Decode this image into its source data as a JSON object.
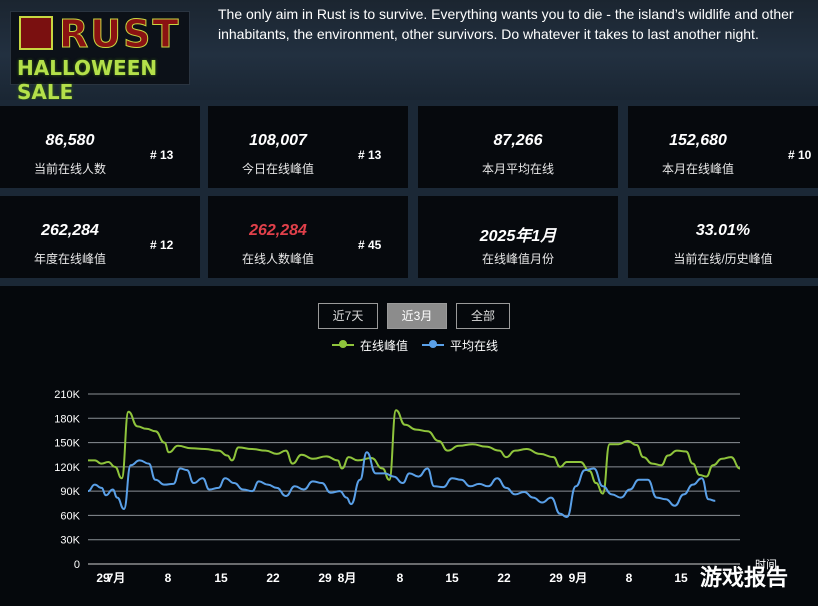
{
  "logo": {
    "title": "RUST",
    "subtitle": "HALLOWEEN SALE"
  },
  "description": "The only aim in Rust is to survive. Everything wants you to die - the island’s wildlife and other inhabitants, the environment, other survivors. Do whatever it takes to last another night.",
  "stats": [
    {
      "value": "86,580",
      "label": "当前在线人数",
      "rank": "# 13"
    },
    {
      "value": "108,007",
      "label": "今日在线峰值",
      "rank": "# 13"
    },
    {
      "value": "87,266",
      "label": "本月平均在线",
      "rank": ""
    },
    {
      "value": "152,680",
      "label": "本月在线峰值",
      "rank": "# 10"
    },
    {
      "value": "262,284",
      "label": "年度在线峰值",
      "rank": "# 12"
    },
    {
      "value": "262,284",
      "label": "在线人数峰值",
      "rank": "# 45",
      "highlight": "#e0404a"
    },
    {
      "value": "2025年1月",
      "label": "在线峰值月份",
      "rank": ""
    },
    {
      "value": "33.01%",
      "label": "当前在线/历史峰值",
      "rank": ""
    }
  ],
  "range_buttons": [
    {
      "label": "近7天",
      "active": false
    },
    {
      "label": "近3月",
      "active": true
    },
    {
      "label": "全部",
      "active": false
    }
  ],
  "chart_data": {
    "type": "line",
    "ylim": [
      0,
      210000
    ],
    "y_ticks": [
      "0",
      "30K",
      "60K",
      "90K",
      "120K",
      "150K",
      "180K",
      "210K"
    ],
    "x_ticks": [
      "29",
      "7月",
      "8",
      "15",
      "22",
      "29",
      "8月",
      "8",
      "15",
      "22",
      "29",
      "9月",
      "8",
      "15"
    ],
    "xlabel": "时间",
    "legend_position": "top",
    "grid": true,
    "series": [
      {
        "name": "在线峰值",
        "color": "#8fc43c",
        "points": [
          [
            0,
            128000
          ],
          [
            3,
            128000
          ],
          [
            6,
            124000
          ],
          [
            9,
            126000
          ],
          [
            12,
            120000
          ],
          [
            15,
            106000
          ],
          [
            18,
            188000
          ],
          [
            22,
            170000
          ],
          [
            26,
            167000
          ],
          [
            30,
            164000
          ],
          [
            34,
            150000
          ],
          [
            36,
            138000
          ],
          [
            40,
            146000
          ],
          [
            46,
            143000
          ],
          [
            52,
            142000
          ],
          [
            58,
            140000
          ],
          [
            62,
            134000
          ],
          [
            64,
            128000
          ],
          [
            67,
            144000
          ],
          [
            73,
            142000
          ],
          [
            79,
            140000
          ],
          [
            84,
            136000
          ],
          [
            88,
            140000
          ],
          [
            91,
            124000
          ],
          [
            95,
            135000
          ],
          [
            100,
            130000
          ],
          [
            106,
            133000
          ],
          [
            111,
            128000
          ],
          [
            113,
            118000
          ],
          [
            116,
            132000
          ],
          [
            120,
            128000
          ],
          [
            126,
            131000
          ],
          [
            131,
            118000
          ],
          [
            134,
            104000
          ],
          [
            137,
            190000
          ],
          [
            141,
            172000
          ],
          [
            146,
            166000
          ],
          [
            151,
            164000
          ],
          [
            156,
            152000
          ],
          [
            160,
            140000
          ],
          [
            165,
            146000
          ],
          [
            171,
            148000
          ],
          [
            177,
            145000
          ],
          [
            183,
            140000
          ],
          [
            186,
            132000
          ],
          [
            190,
            140000
          ],
          [
            195,
            142000
          ],
          [
            201,
            136000
          ],
          [
            207,
            132000
          ],
          [
            210,
            120000
          ],
          [
            213,
            126000
          ],
          [
            219,
            126000
          ],
          [
            223,
            115000
          ],
          [
            226,
            100000
          ],
          [
            229,
            87000
          ],
          [
            232,
            148000
          ],
          [
            236,
            148000
          ],
          [
            240,
            152000
          ],
          [
            244,
            147000
          ],
          [
            247,
            132000
          ],
          [
            251,
            124000
          ],
          [
            255,
            122000
          ],
          [
            258,
            134000
          ],
          [
            262,
            140000
          ],
          [
            266,
            139000
          ],
          [
            269,
            124000
          ],
          [
            272,
            110000
          ],
          [
            275,
            108000
          ],
          [
            278,
            122000
          ],
          [
            282,
            130000
          ],
          [
            286,
            132000
          ],
          [
            290,
            118000
          ]
        ]
      },
      {
        "name": "平均在线",
        "color": "#5aa0e8",
        "points": [
          [
            0,
            90000
          ],
          [
            3,
            98000
          ],
          [
            6,
            94000
          ],
          [
            8,
            85000
          ],
          [
            11,
            92000
          ],
          [
            13,
            82000
          ],
          [
            16,
            68000
          ],
          [
            19,
            122000
          ],
          [
            23,
            128000
          ],
          [
            27,
            124000
          ],
          [
            30,
            104000
          ],
          [
            34,
            98000
          ],
          [
            38,
            99000
          ],
          [
            41,
            118000
          ],
          [
            44,
            116000
          ],
          [
            47,
            100000
          ],
          [
            51,
            106000
          ],
          [
            54,
            92000
          ],
          [
            58,
            94000
          ],
          [
            61,
            106000
          ],
          [
            65,
            100000
          ],
          [
            69,
            92000
          ],
          [
            73,
            90000
          ],
          [
            76,
            102000
          ],
          [
            80,
            98000
          ],
          [
            84,
            94000
          ],
          [
            88,
            84000
          ],
          [
            92,
            96000
          ],
          [
            96,
            92000
          ],
          [
            100,
            102000
          ],
          [
            104,
            100000
          ],
          [
            108,
            88000
          ],
          [
            112,
            90000
          ],
          [
            115,
            82000
          ],
          [
            117,
            74000
          ],
          [
            121,
            104000
          ],
          [
            124,
            138000
          ],
          [
            128,
            112000
          ],
          [
            132,
            112000
          ],
          [
            136,
            108000
          ],
          [
            140,
            100000
          ],
          [
            143,
            112000
          ],
          [
            147,
            108000
          ],
          [
            151,
            118000
          ],
          [
            154,
            96000
          ],
          [
            158,
            95000
          ],
          [
            162,
            106000
          ],
          [
            166,
            104000
          ],
          [
            170,
            96000
          ],
          [
            174,
            99000
          ],
          [
            178,
            96000
          ],
          [
            182,
            106000
          ],
          [
            186,
            94000
          ],
          [
            190,
            86000
          ],
          [
            194,
            89000
          ],
          [
            198,
            82000
          ],
          [
            202,
            76000
          ],
          [
            206,
            82000
          ],
          [
            210,
            62000
          ],
          [
            213,
            58000
          ],
          [
            217,
            96000
          ],
          [
            221,
            116000
          ],
          [
            225,
            118000
          ],
          [
            229,
            96000
          ],
          [
            233,
            86000
          ],
          [
            237,
            82000
          ],
          [
            241,
            92000
          ],
          [
            245,
            104000
          ],
          [
            249,
            104000
          ],
          [
            253,
            82000
          ],
          [
            257,
            80000
          ],
          [
            261,
            72000
          ],
          [
            265,
            86000
          ],
          [
            269,
            98000
          ],
          [
            273,
            106000
          ],
          [
            276,
            80000
          ],
          [
            279,
            78000
          ]
        ]
      }
    ]
  },
  "watermark": "游戏报告"
}
